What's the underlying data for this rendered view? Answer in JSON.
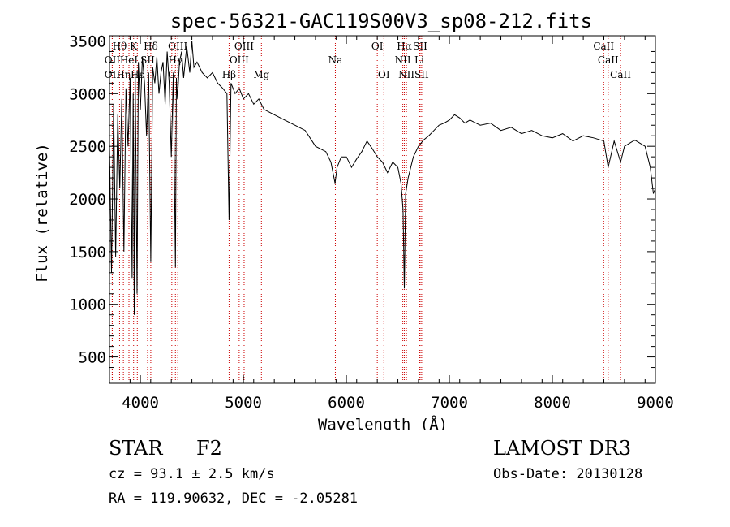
{
  "chart_data": {
    "type": "line",
    "title": "spec-56321-GAC119S00V3_sp08-212.fits",
    "xlabel": "Wavelength (Å)",
    "ylabel": "Flux (relative)",
    "xlim": [
      3700,
      9000
    ],
    "ylim": [
      250,
      3550
    ],
    "xticks": [
      4000,
      5000,
      6000,
      7000,
      8000,
      9000
    ],
    "yticks": [
      500,
      1000,
      1500,
      2000,
      2500,
      3000,
      3500
    ],
    "grid": false,
    "series": [
      {
        "name": "flux",
        "x": [
          3700,
          3720,
          3740,
          3760,
          3780,
          3800,
          3820,
          3840,
          3860,
          3880,
          3900,
          3920,
          3930,
          3940,
          3950,
          3968,
          3980,
          4000,
          4020,
          4040,
          4060,
          4080,
          4101,
          4120,
          4140,
          4160,
          4180,
          4200,
          4220,
          4240,
          4260,
          4280,
          4300,
          4320,
          4340,
          4350,
          4360,
          4380,
          4400,
          4420,
          4450,
          4480,
          4500,
          4520,
          4550,
          4600,
          4650,
          4700,
          4750,
          4800,
          4840,
          4861,
          4880,
          4920,
          4960,
          5000,
          5050,
          5100,
          5150,
          5200,
          5300,
          5400,
          5500,
          5600,
          5700,
          5800,
          5850,
          5890,
          5910,
          5950,
          6000,
          6050,
          6100,
          6150,
          6200,
          6250,
          6300,
          6350,
          6400,
          6450,
          6500,
          6530,
          6550,
          6563,
          6575,
          6600,
          6650,
          6700,
          6750,
          6800,
          6850,
          6900,
          6950,
          7000,
          7050,
          7100,
          7150,
          7200,
          7300,
          7400,
          7500,
          7600,
          7700,
          7800,
          7900,
          8000,
          8100,
          8200,
          8300,
          8400,
          8500,
          8542,
          8600,
          8662,
          8700,
          8800,
          8900,
          8950,
          8980,
          9000
        ],
        "y": [
          2500,
          1300,
          2900,
          1450,
          2800,
          2100,
          2950,
          1500,
          3050,
          2500,
          3150,
          1250,
          3000,
          900,
          3200,
          1100,
          3300,
          2850,
          3350,
          3100,
          2600,
          3200,
          1400,
          3250,
          3100,
          3350,
          3000,
          3200,
          3300,
          2900,
          3400,
          3100,
          2400,
          3200,
          1350,
          3150,
          2950,
          3300,
          3400,
          3150,
          3450,
          3200,
          3500,
          3250,
          3300,
          3200,
          3150,
          3200,
          3100,
          3050,
          3000,
          1800,
          3100,
          3000,
          3050,
          2950,
          3000,
          2900,
          2950,
          2850,
          2800,
          2750,
          2700,
          2650,
          2500,
          2450,
          2350,
          2150,
          2300,
          2400,
          2400,
          2300,
          2380,
          2450,
          2550,
          2480,
          2400,
          2350,
          2250,
          2350,
          2300,
          2150,
          1900,
          1150,
          2050,
          2200,
          2400,
          2500,
          2560,
          2600,
          2650,
          2700,
          2720,
          2750,
          2800,
          2770,
          2720,
          2750,
          2700,
          2720,
          2650,
          2680,
          2620,
          2650,
          2600,
          2580,
          2620,
          2550,
          2600,
          2580,
          2550,
          2300,
          2550,
          2350,
          2500,
          2560,
          2500,
          2300,
          2050,
          2100
        ]
      }
    ],
    "lines": [
      {
        "label": "Hθ",
        "x": 3798,
        "row": 1
      },
      {
        "label": "OII",
        "x": 3727,
        "row": 2
      },
      {
        "label": "OII",
        "x": 3727,
        "row": 3
      },
      {
        "label": "Hη",
        "x": 3835,
        "row": 3
      },
      {
        "label": "HeI",
        "x": 3889,
        "row": 2
      },
      {
        "label": "K",
        "x": 3934,
        "row": 1
      },
      {
        "label": "SII",
        "x": 4070,
        "row": 2
      },
      {
        "label": "Hδ",
        "x": 4101,
        "row": 1
      },
      {
        "label": "Hε",
        "x": 3970,
        "row": 3
      },
      {
        "label": "OIII",
        "x": 4363,
        "row": 1
      },
      {
        "label": "Hγ",
        "x": 4340,
        "row": 2
      },
      {
        "label": "G",
        "x": 4305,
        "row": 3
      },
      {
        "label": "OIII",
        "x": 5007,
        "row": 1
      },
      {
        "label": "OIII",
        "x": 4959,
        "row": 2
      },
      {
        "label": "Hβ",
        "x": 4861,
        "row": 3
      },
      {
        "label": "Mg",
        "x": 5175,
        "row": 3
      },
      {
        "label": "Na",
        "x": 5893,
        "row": 2
      },
      {
        "label": "OI",
        "x": 6300,
        "row": 1
      },
      {
        "label": "OI",
        "x": 6364,
        "row": 3
      },
      {
        "label": "Hα",
        "x": 6563,
        "row": 1
      },
      {
        "label": "SII",
        "x": 6716,
        "row": 1
      },
      {
        "label": "NII",
        "x": 6548,
        "row": 2
      },
      {
        "label": "Li",
        "x": 6708,
        "row": 2
      },
      {
        "label": "NII",
        "x": 6583,
        "row": 3
      },
      {
        "label": "SII",
        "x": 6731,
        "row": 3
      },
      {
        "label": "CaII",
        "x": 8498,
        "row": 1
      },
      {
        "label": "CaII",
        "x": 8542,
        "row": 2
      },
      {
        "label": "CaII",
        "x": 8662,
        "row": 3
      }
    ]
  },
  "info": {
    "class_label": "STAR",
    "subclass": "F2",
    "cz_text": "cz = 93.1 ± 2.5 km/s",
    "radec_text": "RA = 119.90632, DEC =  -2.05281",
    "survey": "LAMOST DR3",
    "obs_date": "Obs-Date: 20130128"
  }
}
